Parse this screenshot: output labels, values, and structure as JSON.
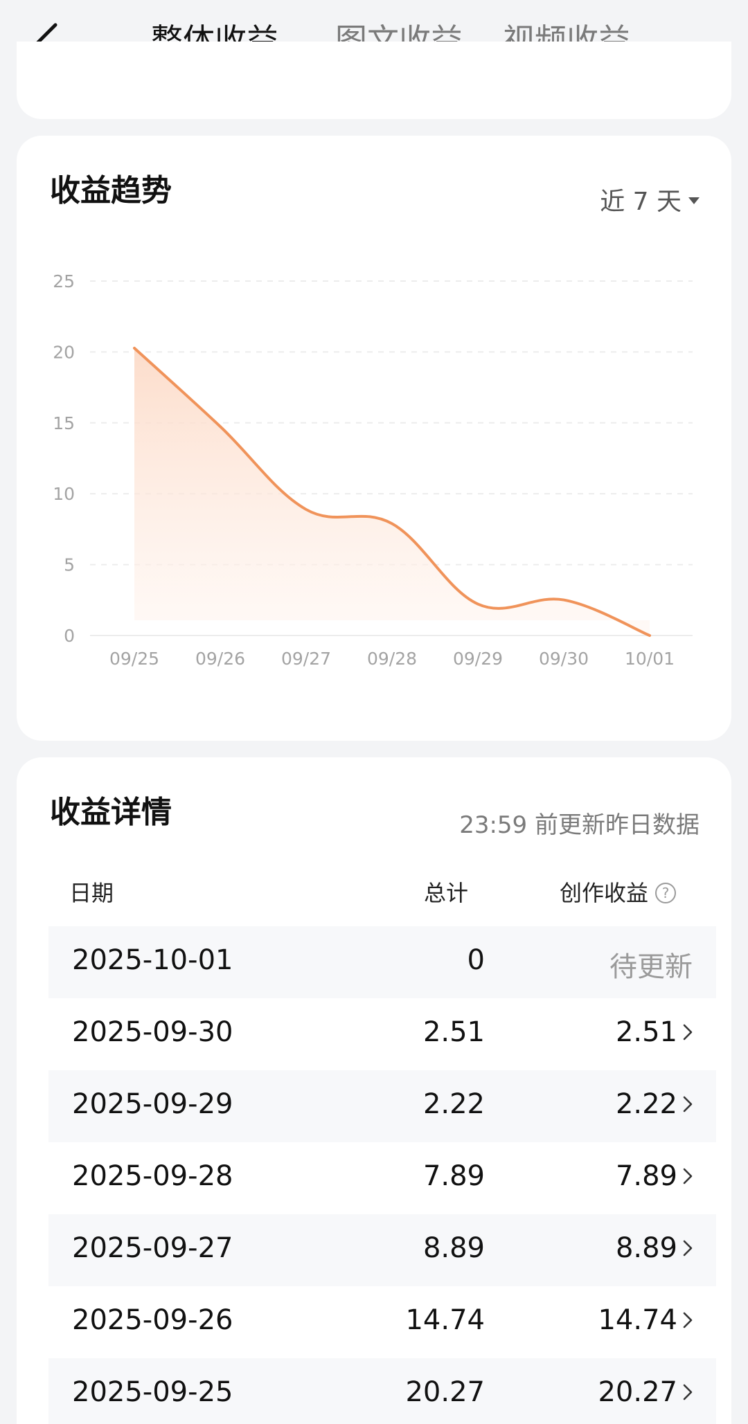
{
  "nav": {
    "tabs": [
      {
        "label": "整体收益",
        "active": true
      },
      {
        "label": "图文收益",
        "active": false
      },
      {
        "label": "视频收益",
        "active": false
      }
    ]
  },
  "trend": {
    "title": "收益趋势",
    "range_label": "近 7 天"
  },
  "chart_data": {
    "type": "area",
    "x": [
      "09/25",
      "09/26",
      "09/27",
      "09/28",
      "09/29",
      "09/30",
      "10/01"
    ],
    "values": [
      20.27,
      14.74,
      8.89,
      7.89,
      2.22,
      2.51,
      0
    ],
    "ylim": [
      0,
      25
    ],
    "yticks": [
      0,
      5,
      10,
      15,
      20,
      25
    ],
    "line_color": "#f0935a",
    "fill_color": "#fde3d4",
    "grid": "dashed horizontal"
  },
  "detail": {
    "title": "收益详情",
    "update_note": "23:59 前更新昨日数据",
    "columns": {
      "date": "日期",
      "total": "总计",
      "creation": "创作收益"
    },
    "help_icon": "?",
    "rows": [
      {
        "date": "2025-10-01",
        "total": "0",
        "creation": "待更新",
        "pending": true
      },
      {
        "date": "2025-09-30",
        "total": "2.51",
        "creation": "2.51",
        "pending": false
      },
      {
        "date": "2025-09-29",
        "total": "2.22",
        "creation": "2.22",
        "pending": false
      },
      {
        "date": "2025-09-28",
        "total": "7.89",
        "creation": "7.89",
        "pending": false
      },
      {
        "date": "2025-09-27",
        "total": "8.89",
        "creation": "8.89",
        "pending": false
      },
      {
        "date": "2025-09-26",
        "total": "14.74",
        "creation": "14.74",
        "pending": false
      },
      {
        "date": "2025-09-25",
        "total": "20.27",
        "creation": "20.27",
        "pending": false
      }
    ]
  }
}
